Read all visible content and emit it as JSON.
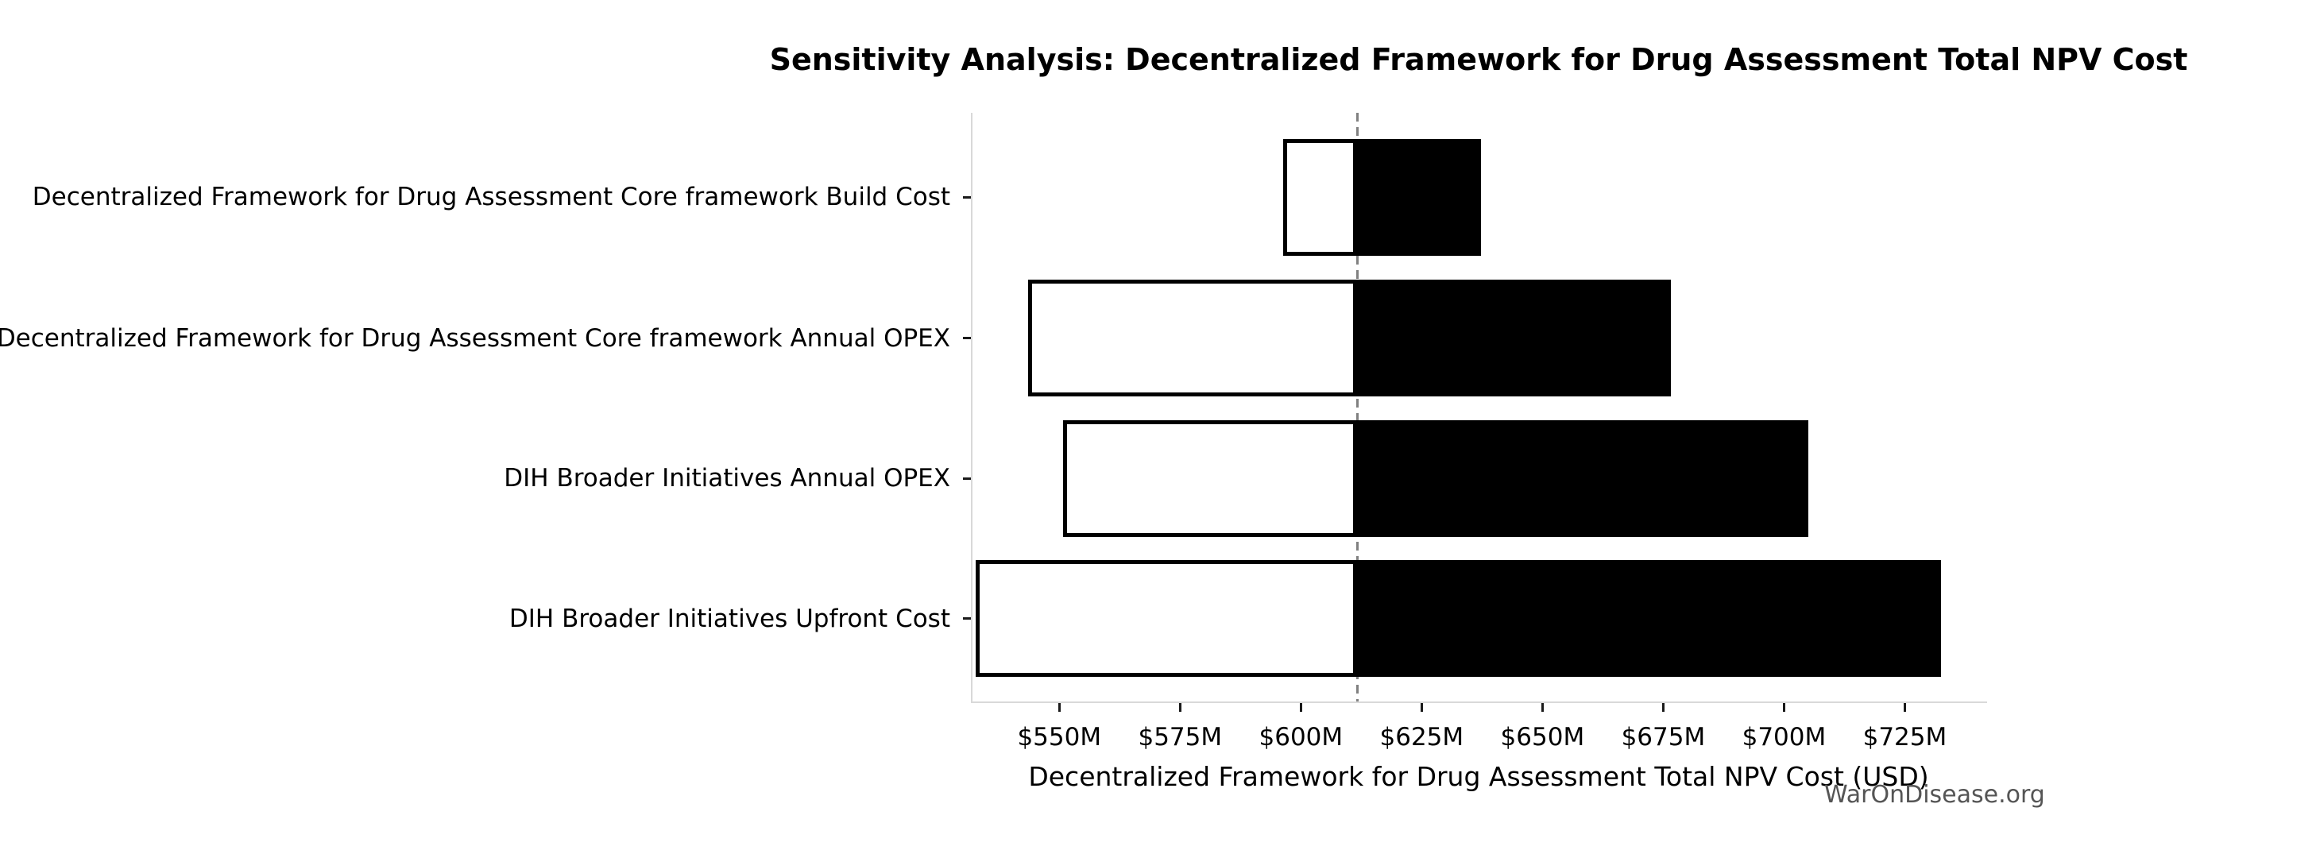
{
  "watermark": "WarOnDisease.org",
  "chart_data": {
    "type": "bar",
    "variant": "tornado-sensitivity",
    "orientation": "horizontal",
    "title": "Sensitivity Analysis: Decentralized Framework for Drug Assessment Total NPV Cost",
    "xlabel": "Decentralized Framework for Drug Assessment Total NPV Cost (USD)",
    "ylabel": "",
    "unit": "USD millions",
    "base_value": 611.3,
    "xlim": [
      531.7,
      741.7
    ],
    "grid": false,
    "legend": false,
    "xticks": [
      {
        "value": 550,
        "label": "$550M"
      },
      {
        "value": 575,
        "label": "$575M"
      },
      {
        "value": 600,
        "label": "$600M"
      },
      {
        "value": 625,
        "label": "$625M"
      },
      {
        "value": 650,
        "label": "$650M"
      },
      {
        "value": 675,
        "label": "$675M"
      },
      {
        "value": 700,
        "label": "$700M"
      },
      {
        "value": 725,
        "label": "$725M"
      }
    ],
    "rows": [
      {
        "label": "Decentralized Framework for Drug Assessment Core framework Build Cost",
        "low": 596.0,
        "high": 637.0
      },
      {
        "label": "Decentralized Framework for Drug Assessment Core framework Annual OPEX",
        "low": 543.2,
        "high": 676.3
      },
      {
        "label": "DIH Broader Initiatives Annual OPEX",
        "low": 550.5,
        "high": 704.7
      },
      {
        "label": "DIH Broader Initiatives Upfront Cost",
        "low": 532.3,
        "high": 732.1
      }
    ],
    "colors": {
      "low_fill": "#ffffff",
      "high_fill": "#000000",
      "bar_edge": "#000000",
      "baseline": "#808080",
      "spine": "#d9d9d9",
      "tick_mark": "#1a1a1a",
      "text": "#000000",
      "watermark": "#555555"
    }
  }
}
